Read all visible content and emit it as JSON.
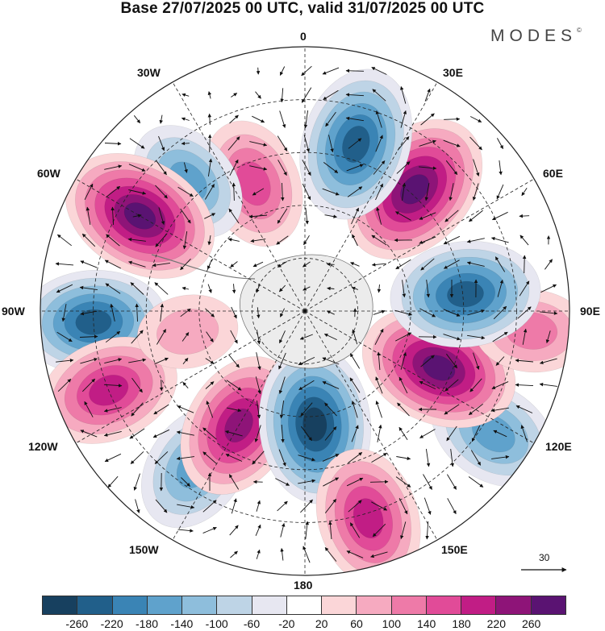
{
  "title": "Base 27/07/2025 00 UTC, valid 31/07/2025 00 UTC",
  "brand": "MODES",
  "brand_mark": "©",
  "lon_labels": {
    "l0": "0",
    "l30e": "30E",
    "l60e": "60E",
    "l90e": "90E",
    "l120e": "120E",
    "l150e": "150E",
    "l180": "180",
    "l150w": "150W",
    "l120w": "120W",
    "l90w": "90W",
    "l60w": "60W",
    "l30w": "30W"
  },
  "reference_vector": {
    "value": "30"
  },
  "legend": {
    "colors": [
      "#17405f",
      "#215f8a",
      "#3a84b5",
      "#5fa2cc",
      "#8ebedc",
      "#bed4e6",
      "#e7e7f1",
      "#ffffff",
      "#fbd6d8",
      "#f6aac0",
      "#ee7aa8",
      "#e14b98",
      "#c11d85",
      "#8e1478",
      "#5a1372"
    ],
    "tick_labels": [
      "-260",
      "-220",
      "-180",
      "-140",
      "-100",
      "-60",
      "-20",
      "20",
      "60",
      "100",
      "140",
      "180",
      "220",
      "260"
    ]
  },
  "chart_data": {
    "type": "polar-map",
    "projection": "south polar stereographic",
    "base_time": "27/07/2025 00 UTC",
    "valid_time": "31/07/2025 00 UTC",
    "field": "anomaly with wind vectors",
    "anomaly_features": [
      {
        "name": "pos-30w-outer",
        "lon": -22,
        "r": 0.52,
        "value": 160
      },
      {
        "name": "neg-50w",
        "lon": -42,
        "r": 0.66,
        "value": -150
      },
      {
        "name": "pos-60w",
        "lon": -60,
        "r": 0.72,
        "value": 260
      },
      {
        "name": "neg-90w",
        "lon": -93,
        "r": 0.8,
        "value": -220
      },
      {
        "name": "pos-110w",
        "lon": -112,
        "r": 0.8,
        "value": 200
      },
      {
        "name": "neg-140w",
        "lon": -145,
        "r": 0.72,
        "value": -170
      },
      {
        "name": "pos-155w",
        "lon": -150,
        "r": 0.5,
        "value": 220
      },
      {
        "name": "neg-175e",
        "lon": 175,
        "r": 0.43,
        "value": -260
      },
      {
        "name": "pos-160e",
        "lon": 163,
        "r": 0.82,
        "value": 200
      },
      {
        "name": "neg-125e",
        "lon": 123,
        "r": 0.85,
        "value": -170
      },
      {
        "name": "pos-115e",
        "lon": 113,
        "r": 0.55,
        "value": 260
      },
      {
        "name": "pos-95e",
        "lon": 95,
        "r": 0.86,
        "value": 110
      },
      {
        "name": "neg-85e",
        "lon": 84,
        "r": 0.61,
        "value": -230
      },
      {
        "name": "pos-45e",
        "lon": 42,
        "r": 0.62,
        "value": 260
      },
      {
        "name": "neg-20e",
        "lon": 17,
        "r": 0.66,
        "value": -240
      },
      {
        "name": "pos-95w-inner",
        "lon": -100,
        "r": 0.45,
        "value": 60
      }
    ],
    "colorbar_levels": [
      -260,
      -220,
      -180,
      -140,
      -100,
      -60,
      -20,
      20,
      60,
      100,
      140,
      180,
      220,
      260
    ],
    "reference_vector": 30
  }
}
